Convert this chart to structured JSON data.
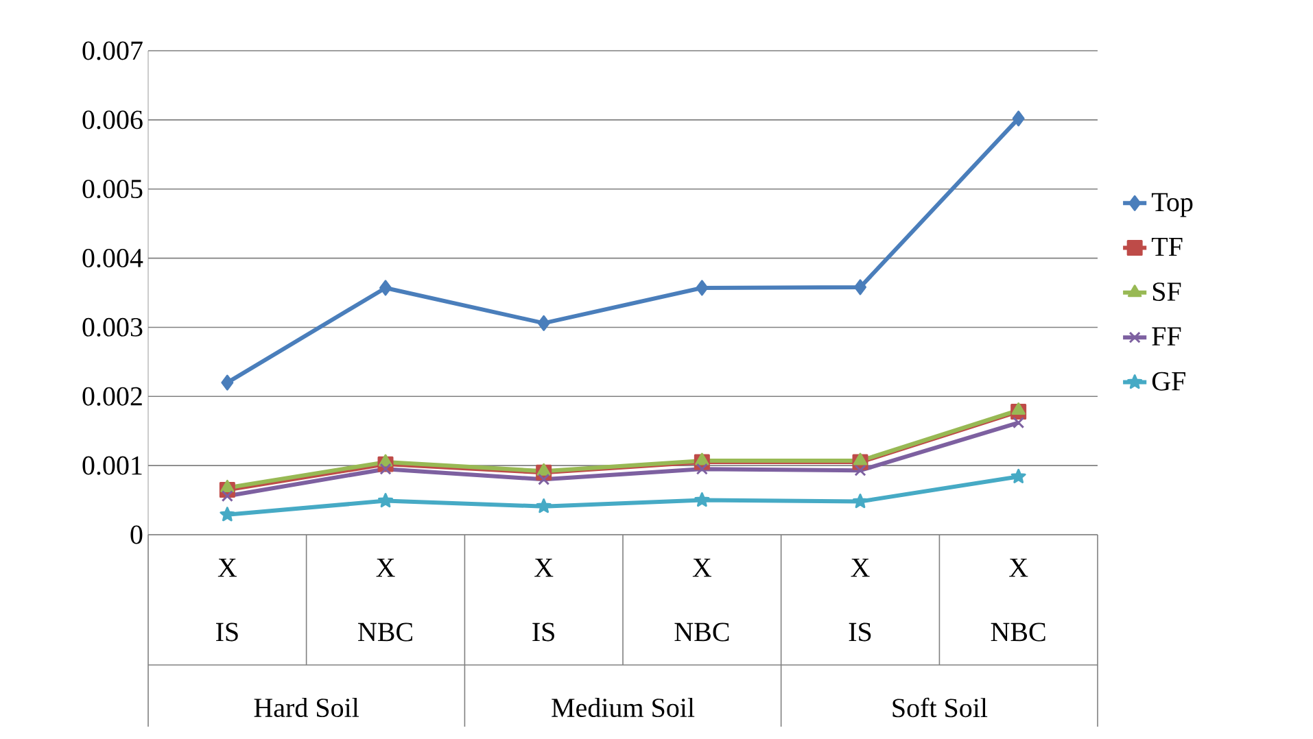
{
  "chart_data": {
    "type": "line",
    "categories": [
      "X",
      "X",
      "X",
      "X",
      "X",
      "X"
    ],
    "annotations": [
      "IS",
      "NBC",
      "IS",
      "NBC",
      "IS",
      "NBC",
      "Hard Soil",
      "Medium Soil",
      "Soft Soil"
    ],
    "series": [
      {
        "name": "Top",
        "color": "#4a7ebb",
        "marker": "diamond",
        "values": [
          0.0022,
          0.00357,
          0.00306,
          0.00357,
          0.00358,
          0.00602
        ]
      },
      {
        "name": "TF",
        "color": "#be4b48",
        "marker": "square",
        "values": [
          0.00065,
          0.00102,
          0.0009,
          0.00105,
          0.00105,
          0.00178
        ]
      },
      {
        "name": "SF",
        "color": "#98b954",
        "marker": "triangle",
        "values": [
          0.00068,
          0.00105,
          0.00092,
          0.00107,
          0.00107,
          0.0018
        ]
      },
      {
        "name": "FF",
        "color": "#7d60a0",
        "marker": "cross",
        "values": [
          0.00056,
          0.00095,
          0.0008,
          0.00095,
          0.00093,
          0.00162
        ]
      },
      {
        "name": "GF",
        "color": "#46aac5",
        "marker": "star",
        "values": [
          0.00029,
          0.00049,
          0.00041,
          0.0005,
          0.00048,
          0.00084
        ]
      }
    ],
    "ylim": [
      0,
      0.007
    ],
    "yticks": [
      0,
      0.001,
      0.002,
      0.003,
      0.004,
      0.005,
      0.006,
      0.007
    ],
    "grid": "y",
    "legend": "right",
    "line_style": "solid"
  }
}
